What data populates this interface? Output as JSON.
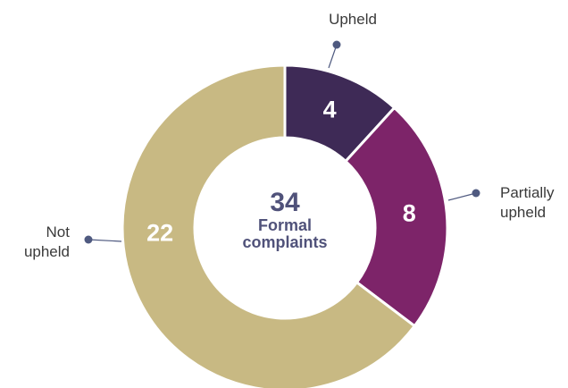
{
  "chart_data": {
    "type": "donut",
    "categories": [
      "Upheld",
      "Partially upheld",
      "Not upheld"
    ],
    "values": [
      4,
      8,
      22
    ],
    "colors": [
      "#3e2a56",
      "#7d2469",
      "#c8b983"
    ],
    "center_value": "34",
    "center_label": "Formal complaints"
  }
}
